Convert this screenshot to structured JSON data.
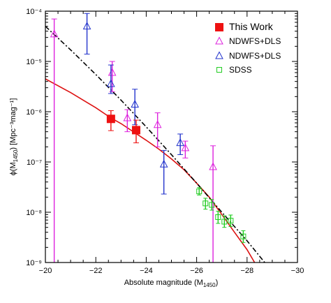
{
  "chart_data": {
    "type": "scatter",
    "title": "",
    "xlabel": "Absolute magnitude (M",
    "xlabel_sub": "1450",
    "xlabel_end": ")",
    "ylabel": "ϕ(M",
    "ylabel_sub": "1450",
    "ylabel_end": ") [Mpc⁻³mag⁻¹]",
    "xlim": [
      -20,
      -30
    ],
    "ylim": [
      1e-09,
      0.0001
    ],
    "yscale": "log",
    "x_ticks": [
      -20,
      -22,
      -24,
      -26,
      -28,
      -30
    ],
    "x_tick_labels": [
      "−20",
      "−22",
      "−24",
      "−26",
      "−28",
      "−30"
    ],
    "y_ticks": [
      1e-09,
      1e-08,
      1e-07,
      1e-06,
      1e-05,
      0.0001
    ],
    "y_tick_labels": [
      "10⁻⁹",
      "10⁻⁸",
      "10⁻⁷",
      "10⁻⁶",
      "10⁻⁵",
      "10⁻⁴"
    ],
    "grid": false,
    "legend_position": "top-right",
    "series": [
      {
        "name": "This Work",
        "marker": "filled-square",
        "color": "#ee1111",
        "points": [
          {
            "x": -22.6,
            "y": 7.2e-07,
            "ylo": 4.2e-07,
            "yhi": 1.05e-06
          },
          {
            "x": -23.6,
            "y": 4.3e-07,
            "ylo": 2.4e-07,
            "yhi": 6.8e-07
          }
        ]
      },
      {
        "name": "NDWFS+DLS",
        "marker": "triangle",
        "color": "#dd22dd",
        "points": [
          {
            "x": -20.35,
            "y": 3.5e-05,
            "ylo": 1e-09,
            "yhi": 7e-05
          },
          {
            "x": -22.65,
            "y": 6e-06,
            "ylo": 2.5e-06,
            "yhi": 1e-05
          },
          {
            "x": -23.25,
            "y": 7.5e-07,
            "ylo": 4e-07,
            "yhi": 1.1e-06
          },
          {
            "x": -24.45,
            "y": 5.5e-07,
            "ylo": 2e-07,
            "yhi": 9.5e-07
          },
          {
            "x": -25.55,
            "y": 1.9e-07,
            "ylo": 1.2e-07,
            "yhi": 2.6e-07
          },
          {
            "x": -26.65,
            "y": 8e-08,
            "ylo": 1e-09,
            "yhi": 2.1e-07
          }
        ]
      },
      {
        "name": "NDWFS+DLS",
        "marker": "triangle",
        "color": "#2233cc",
        "points": [
          {
            "x": -21.65,
            "y": 5e-05,
            "ylo": 1.4e-05,
            "yhi": 9e-05
          },
          {
            "x": -22.6,
            "y": 3.6e-06,
            "ylo": 2.3e-06,
            "yhi": 8.5e-06
          },
          {
            "x": -23.55,
            "y": 1.4e-06,
            "ylo": 5.5e-07,
            "yhi": 2.8e-06
          },
          {
            "x": -24.7,
            "y": 9e-08,
            "ylo": 2.3e-08,
            "yhi": 1.7e-07
          },
          {
            "x": -25.35,
            "y": 2.4e-07,
            "ylo": 1.4e-07,
            "yhi": 3.6e-07
          }
        ]
      },
      {
        "name": "SDSS",
        "marker": "open-square",
        "color": "#22cc22",
        "points": [
          {
            "x": -26.1,
            "y": 2.6e-08,
            "ylo": 2.2e-08,
            "yhi": 3.1e-08
          },
          {
            "x": -26.35,
            "y": 1.5e-08,
            "ylo": 1.15e-08,
            "yhi": 1.9e-08
          },
          {
            "x": -26.6,
            "y": 1.4e-08,
            "ylo": 1.1e-08,
            "yhi": 1.8e-08
          },
          {
            "x": -26.85,
            "y": 8e-09,
            "ylo": 6e-09,
            "yhi": 1.05e-08
          },
          {
            "x": -27.1,
            "y": 6.5e-09,
            "ylo": 5e-09,
            "yhi": 8.5e-09
          },
          {
            "x": -27.35,
            "y": 6.8e-09,
            "ylo": 5.2e-09,
            "yhi": 8.8e-09
          },
          {
            "x": -27.85,
            "y": 3.3e-09,
            "ylo": 2.5e-09,
            "yhi": 4.3e-09
          }
        ]
      }
    ],
    "curves": [
      {
        "style": "solid",
        "color": "#dd1111",
        "points": [
          {
            "x": -20,
            "y": 4.5e-06
          },
          {
            "x": -21,
            "y": 2.4e-06
          },
          {
            "x": -22,
            "y": 1.2e-06
          },
          {
            "x": -22.6,
            "y": 7.5e-07
          },
          {
            "x": -23,
            "y": 5.8e-07
          },
          {
            "x": -24,
            "y": 2.7e-07
          },
          {
            "x": -24.5,
            "y": 1.8e-07
          },
          {
            "x": -25,
            "y": 1.15e-07
          },
          {
            "x": -25.5,
            "y": 7e-08
          },
          {
            "x": -26,
            "y": 3.8e-08
          },
          {
            "x": -26.5,
            "y": 2e-08
          },
          {
            "x": -27,
            "y": 9e-09
          },
          {
            "x": -27.5,
            "y": 4e-09
          },
          {
            "x": -28,
            "y": 1.8e-09
          },
          {
            "x": -28.3,
            "y": 1e-09
          }
        ]
      },
      {
        "style": "dash-dot",
        "color": "#000000",
        "points": [
          {
            "x": -20,
            "y": 5e-05
          },
          {
            "x": -21,
            "y": 1.7e-05
          },
          {
            "x": -22,
            "y": 5.5e-06
          },
          {
            "x": -23,
            "y": 1.7e-06
          },
          {
            "x": -24,
            "y": 5e-07
          },
          {
            "x": -25,
            "y": 1.4e-07
          },
          {
            "x": -26,
            "y": 3.8e-08
          },
          {
            "x": -27,
            "y": 1e-08
          },
          {
            "x": -28,
            "y": 2.7e-09
          },
          {
            "x": -28.7,
            "y": 1e-09
          }
        ]
      }
    ]
  },
  "colors": {
    "this_work": "#ee1111",
    "ndwfs_magenta": "#dd22dd",
    "ndwfs_blue": "#2233cc",
    "sdss": "#22cc22",
    "fit_red": "#dd1111",
    "fit_black": "#000000"
  }
}
